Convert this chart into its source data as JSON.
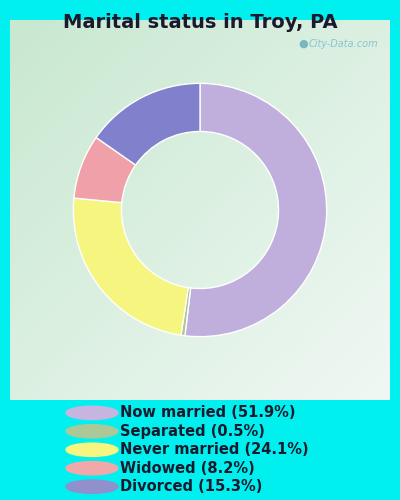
{
  "title": "Marital status in Troy, PA",
  "background_outer": "#00f0f0",
  "background_inner_tl": "#c8e8d0",
  "background_inner_br": "#f0f8f8",
  "slices": [
    51.9,
    0.5,
    24.1,
    8.2,
    15.3
  ],
  "colors": [
    "#c0aedd",
    "#b0c898",
    "#f5f580",
    "#f0a0a8",
    "#8080cc"
  ],
  "labels": [
    "Now married (51.9%)",
    "Separated (0.5%)",
    "Never married (24.1%)",
    "Widowed (8.2%)",
    "Divorced (15.3%)"
  ],
  "legend_colors": [
    "#c8b4e0",
    "#aac898",
    "#f5f580",
    "#f0a8a8",
    "#9090cc"
  ],
  "watermark": "City-Data.com",
  "title_fontsize": 14,
  "legend_fontsize": 10.5,
  "donut_width": 0.38
}
